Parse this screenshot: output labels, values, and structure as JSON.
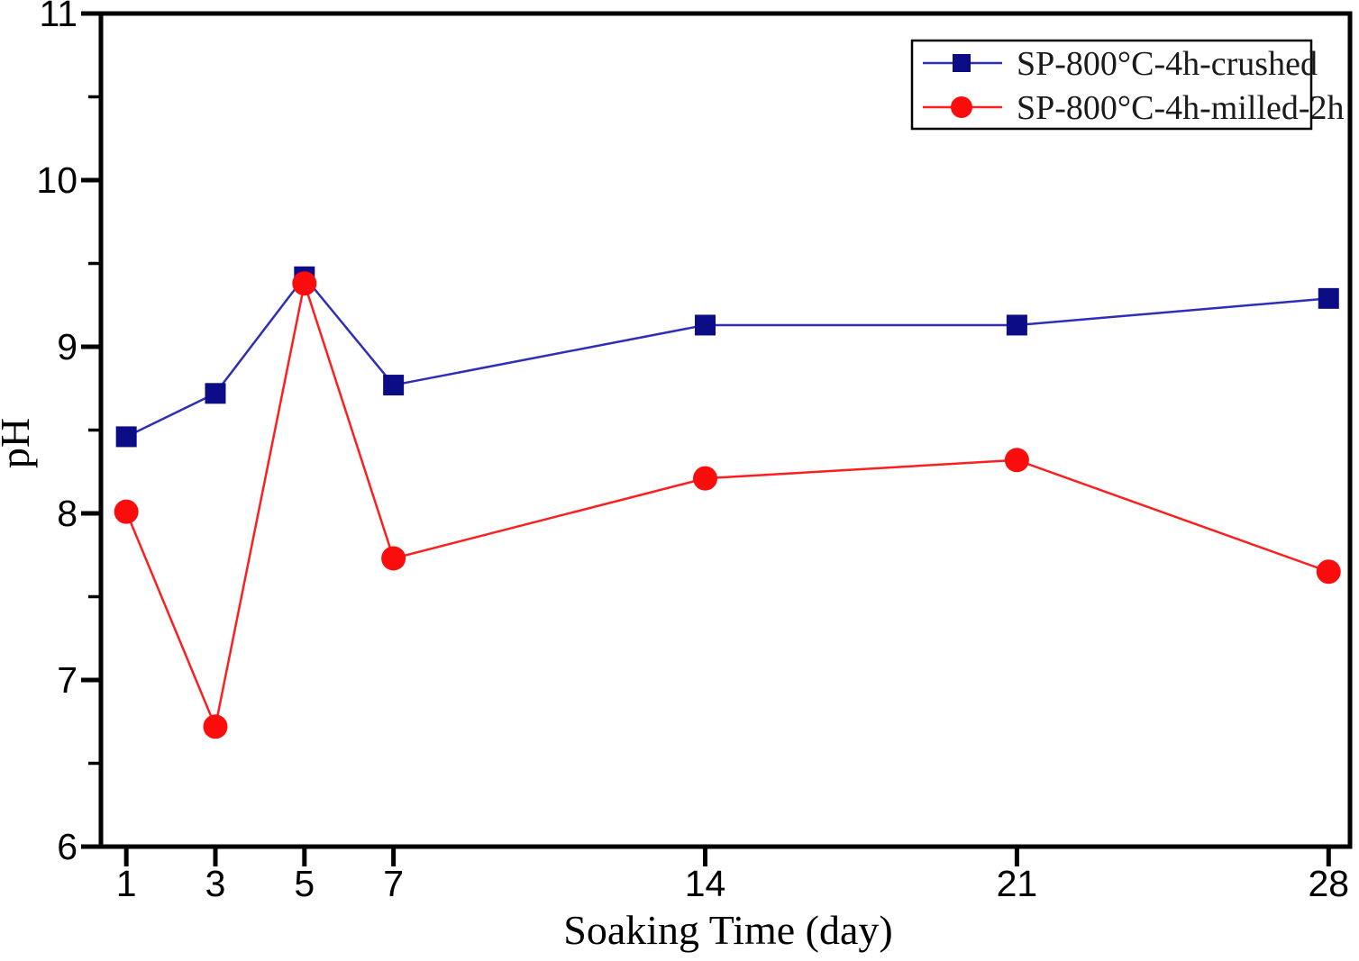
{
  "chart_data": {
    "type": "line",
    "title": "",
    "xlabel": "Soaking Time (day)",
    "ylabel": "pH",
    "x": [
      1,
      3,
      5,
      7,
      14,
      21,
      28
    ],
    "x_tick_labels": [
      "1",
      "3",
      "5",
      "7",
      "14",
      "21",
      "28"
    ],
    "xlim": [
      0.43,
      28.48
    ],
    "ylim": [
      6,
      11
    ],
    "y_ticks": [
      6,
      7,
      8,
      9,
      10,
      11
    ],
    "y_tick_labels": [
      "6",
      "7",
      "8",
      "9",
      "10",
      "11"
    ],
    "y_minor_ticks": [
      6.5,
      7.5,
      8.5,
      9.5,
      10.5
    ],
    "grid": false,
    "legend_position": "top-right",
    "axis_color": "#000000",
    "background_color": "#ffffff",
    "series": [
      {
        "name": "SP-800°C-4h-crushed",
        "marker": "square",
        "line_color": "#2e2eb8",
        "marker_color": "#0c0c86",
        "values": [
          8.46,
          8.72,
          9.42,
          8.77,
          9.13,
          9.13,
          9.29
        ]
      },
      {
        "name": "SP-800°C-4h-milled-2h",
        "marker": "circle",
        "line_color": "#fb1f1f",
        "marker_color": "#fc0d0d",
        "values": [
          8.01,
          6.72,
          9.38,
          7.73,
          8.21,
          8.32,
          7.65
        ]
      }
    ]
  }
}
